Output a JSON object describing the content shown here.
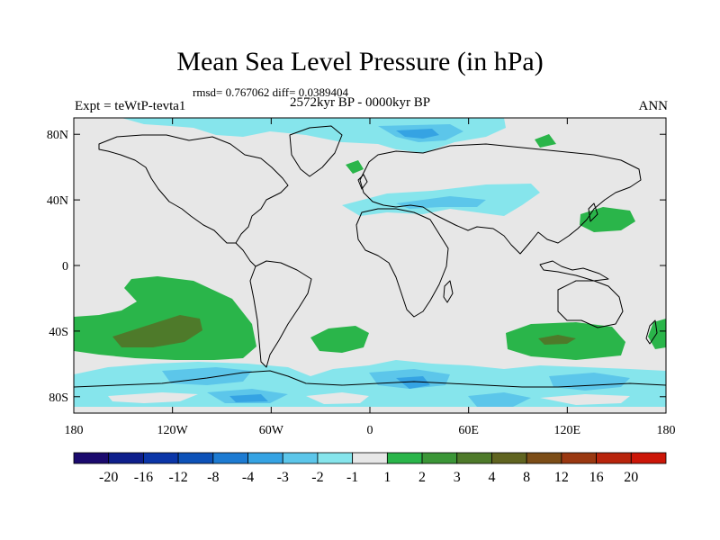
{
  "title": "Mean Sea Level Pressure (in hPa)",
  "stats": "rmsd= 0.767062 diff= 0.0389404",
  "period": "2572kyr BP - 0000kyr BP",
  "experiment": "Expt = teWtP-tevta1",
  "season": "ANN",
  "y_axis": {
    "labels": [
      "80N",
      "40N",
      "0",
      "40S",
      "80S"
    ],
    "values": [
      80,
      40,
      0,
      -40,
      -80
    ],
    "range": [
      -90,
      90
    ]
  },
  "x_axis": {
    "labels": [
      "180",
      "120W",
      "60W",
      "0",
      "60E",
      "120E",
      "180"
    ],
    "values": [
      -180,
      -120,
      -60,
      0,
      60,
      120,
      180
    ],
    "range": [
      -180,
      180
    ]
  },
  "colorbar": {
    "colors": [
      "#1b0a6e",
      "#0e1f8c",
      "#0b36a8",
      "#0d52b8",
      "#1d7bd2",
      "#35a3e3",
      "#5cc6ea",
      "#86e5ec",
      "#e7e7e7",
      "#2ab54a",
      "#3b9637",
      "#4e7a2a",
      "#606420",
      "#7c4d17",
      "#9a3811",
      "#b8240c",
      "#cc1608"
    ],
    "labels": [
      "-20",
      "-16",
      "-12",
      "-8",
      "-4",
      "-3",
      "-2",
      "-1",
      "1",
      "2",
      "3",
      "4",
      "8",
      "12",
      "16",
      "20"
    ]
  },
  "colors": {
    "neutral": "#e7e7e7",
    "neg_light": "#86e5ec",
    "neg_mid": "#5cc6ea",
    "neg_strong": "#35a3e3",
    "pos_light": "#2ab54a",
    "pos_mid": "#3b9637",
    "pos_strong": "#4e7a2a",
    "coast": "#000000"
  }
}
